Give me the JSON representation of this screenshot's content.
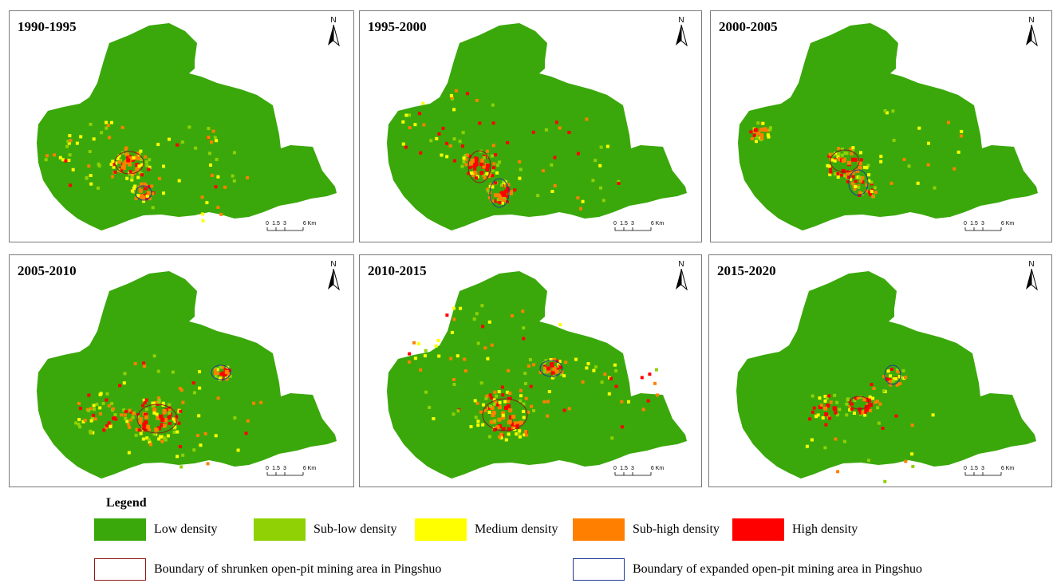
{
  "panels": [
    {
      "title": "1990-1995"
    },
    {
      "title": "1995-2000"
    },
    {
      "title": "2000-2005"
    },
    {
      "title": "2005-2010"
    },
    {
      "title": "2010-2015"
    },
    {
      "title": "2015-2020"
    }
  ],
  "north_label": "N",
  "scale_labels": [
    "0",
    "1.5",
    "3",
    "6 Km"
  ],
  "legend": {
    "title": "Legend",
    "density_classes": [
      {
        "label": "Low density",
        "color": "#3aa80a"
      },
      {
        "label": "Sub-low density",
        "color": "#8fd104"
      },
      {
        "label": "Medium density",
        "color": "#ffff00"
      },
      {
        "label": "Sub-high density",
        "color": "#ff8000"
      },
      {
        "label": "High density",
        "color": "#ff0000"
      }
    ],
    "boundaries": [
      {
        "label": "Boundary of shrunken open-pit mining area in Pingshuo",
        "color": "#8b1a1a"
      },
      {
        "label": "Boundary of expanded open-pit mining area in Pingshuo",
        "color": "#1f3a93"
      }
    ]
  }
}
